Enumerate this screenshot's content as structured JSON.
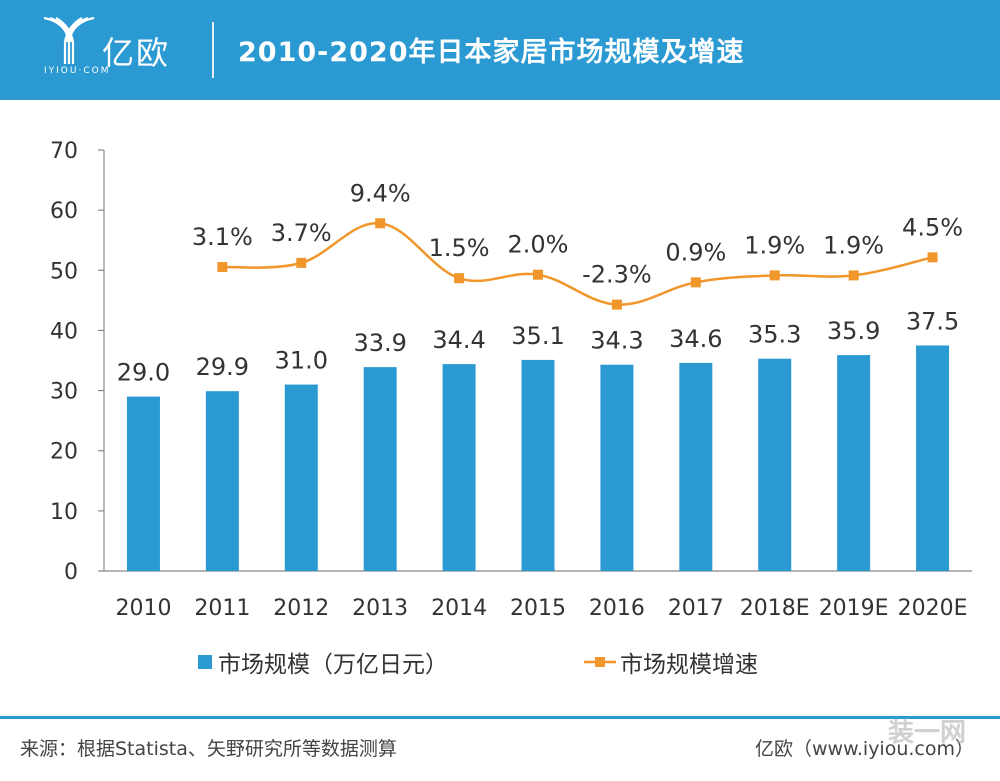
{
  "header": {
    "brand_name": "亿欧",
    "brand_sub": "IYIOU·COM",
    "title": "2010-2020年日本家居市场规模及增速"
  },
  "chart_data": {
    "type": "bar",
    "title": "2010-2020年日本家居市场规模及增速",
    "categories": [
      "2010",
      "2011",
      "2012",
      "2013",
      "2014",
      "2015",
      "2016",
      "2017",
      "2018E",
      "2019E",
      "2020E"
    ],
    "series": [
      {
        "name": "市场规模（万亿日元）",
        "type": "bar",
        "values": [
          29.0,
          29.9,
          31.0,
          33.9,
          34.4,
          35.1,
          34.3,
          34.6,
          35.3,
          35.9,
          37.5
        ],
        "labels": [
          "29.0",
          "29.9",
          "31.0",
          "33.9",
          "34.4",
          "35.1",
          "34.3",
          "34.6",
          "35.3",
          "35.9",
          "37.5"
        ],
        "color": "#2b9ad3"
      },
      {
        "name": "市场规模增速",
        "type": "line",
        "values": [
          null,
          3.1,
          3.7,
          9.4,
          1.5,
          2.0,
          -2.3,
          0.9,
          1.9,
          1.9,
          4.5
        ],
        "labels": [
          null,
          "3.1%",
          "3.7%",
          "9.4%",
          "1.5%",
          "2.0%",
          "-2.3%",
          "0.9%",
          "1.9%",
          "1.9%",
          "4.5%"
        ],
        "color": "#f0962b",
        "secondary_axis": true
      }
    ],
    "ylim": [
      0,
      70
    ],
    "yticks": [
      "0",
      "10",
      "20",
      "30",
      "40",
      "50",
      "60",
      "70"
    ],
    "xlabel": "",
    "ylabel": "",
    "grid": false,
    "legend": "bottom"
  },
  "footer": {
    "source": "来源：根据Statista、矢野研究所等数据测算",
    "brand": "亿欧（www.iyiou.com）",
    "watermark": "装一网"
  }
}
